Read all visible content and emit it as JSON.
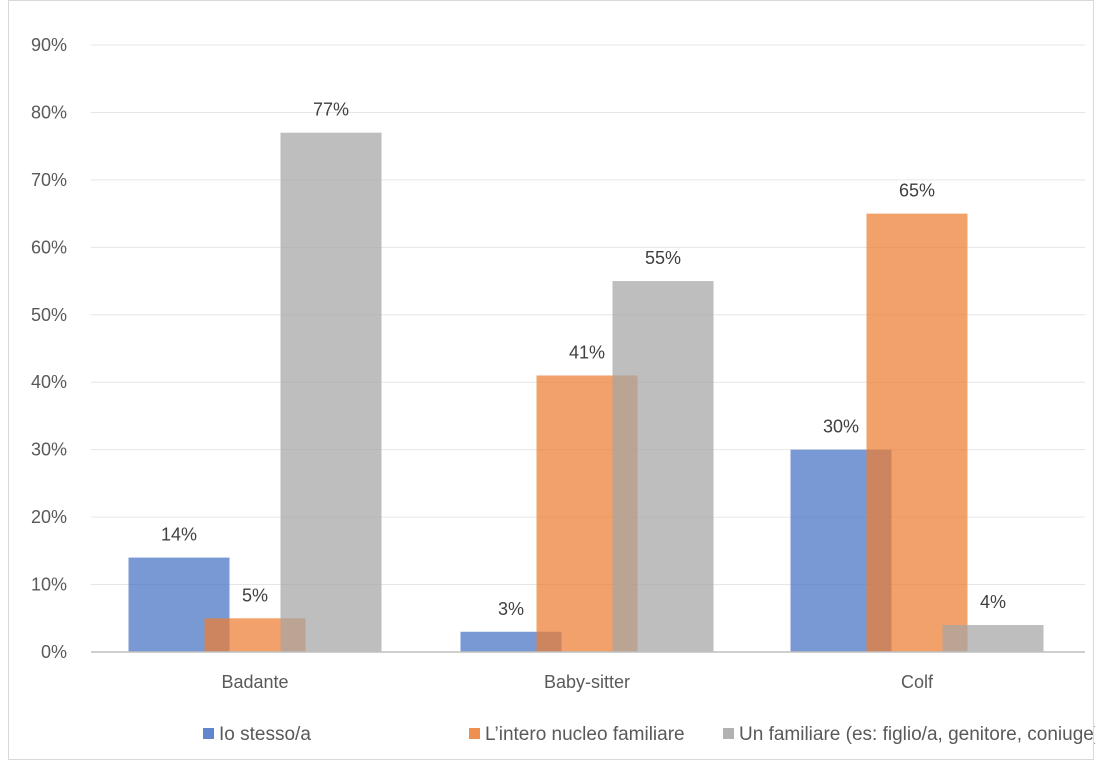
{
  "chart_data": {
    "type": "bar",
    "title": "",
    "xlabel": "",
    "ylabel": "",
    "categories": [
      "Badante",
      "Baby-sitter",
      "Colf"
    ],
    "ylim": [
      0,
      90
    ],
    "yticks": [
      0,
      10,
      20,
      30,
      40,
      50,
      60,
      70,
      80,
      90
    ],
    "value_format": "percent",
    "grid": true,
    "legend_position": "bottom",
    "series": [
      {
        "name": "Io stesso/a",
        "color": "#4472C4",
        "values": [
          14,
          3,
          30
        ]
      },
      {
        "name": "L’intero nucleo familiare",
        "color": "#ED7D31",
        "values": [
          5,
          41,
          65
        ]
      },
      {
        "name": "Un familiare (es: figlio/a, genitore, coniuge)",
        "color": "#A5A5A5",
        "values": [
          77,
          55,
          4
        ]
      }
    ]
  }
}
